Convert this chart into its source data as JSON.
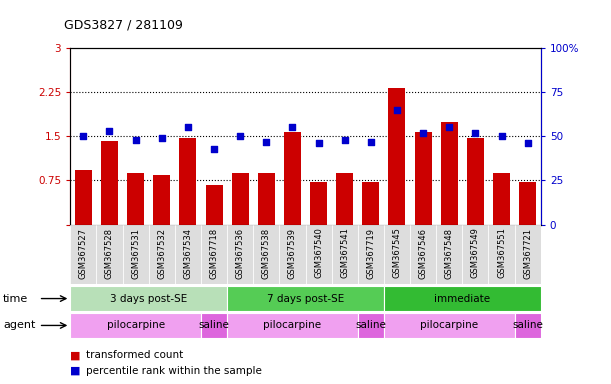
{
  "title": "GDS3827 / 281109",
  "samples": [
    "GSM367527",
    "GSM367528",
    "GSM367531",
    "GSM367532",
    "GSM367534",
    "GSM367718",
    "GSM367536",
    "GSM367538",
    "GSM367539",
    "GSM367540",
    "GSM367541",
    "GSM367719",
    "GSM367545",
    "GSM367546",
    "GSM367548",
    "GSM367549",
    "GSM367551",
    "GSM367721"
  ],
  "bar_values": [
    0.92,
    1.42,
    0.88,
    0.85,
    1.47,
    0.68,
    0.88,
    0.88,
    1.58,
    0.73,
    0.88,
    0.72,
    2.32,
    1.57,
    1.75,
    1.47,
    0.88,
    0.73
  ],
  "dot_values": [
    50,
    53,
    48,
    49,
    55,
    43,
    50,
    47,
    55,
    46,
    48,
    47,
    65,
    52,
    55,
    52,
    50,
    46
  ],
  "bar_color": "#cc0000",
  "dot_color": "#0000cc",
  "left_ylim": [
    0,
    3
  ],
  "right_ylim": [
    0,
    100
  ],
  "left_yticks": [
    0,
    0.75,
    1.5,
    2.25,
    3
  ],
  "right_yticks": [
    0,
    25,
    50,
    75,
    100
  ],
  "hlines": [
    0.75,
    1.5,
    2.25
  ],
  "time_groups": [
    {
      "label": "3 days post-SE",
      "start": 0,
      "end": 5,
      "color": "#b8e0b8"
    },
    {
      "label": "7 days post-SE",
      "start": 6,
      "end": 11,
      "color": "#55cc55"
    },
    {
      "label": "immediate",
      "start": 12,
      "end": 17,
      "color": "#33bb33"
    }
  ],
  "agent_groups": [
    {
      "label": "pilocarpine",
      "start": 0,
      "end": 4,
      "color": "#f0a0f0"
    },
    {
      "label": "saline",
      "start": 5,
      "end": 5,
      "color": "#dd66dd"
    },
    {
      "label": "pilocarpine",
      "start": 6,
      "end": 10,
      "color": "#f0a0f0"
    },
    {
      "label": "saline",
      "start": 11,
      "end": 11,
      "color": "#dd66dd"
    },
    {
      "label": "pilocarpine",
      "start": 12,
      "end": 16,
      "color": "#f0a0f0"
    },
    {
      "label": "saline",
      "start": 17,
      "end": 17,
      "color": "#dd66dd"
    }
  ],
  "legend_bar_label": "transformed count",
  "legend_dot_label": "percentile rank within the sample",
  "time_label": "time",
  "agent_label": "agent",
  "xlabel_color": "#333333",
  "tick_bg_color": "#dddddd"
}
